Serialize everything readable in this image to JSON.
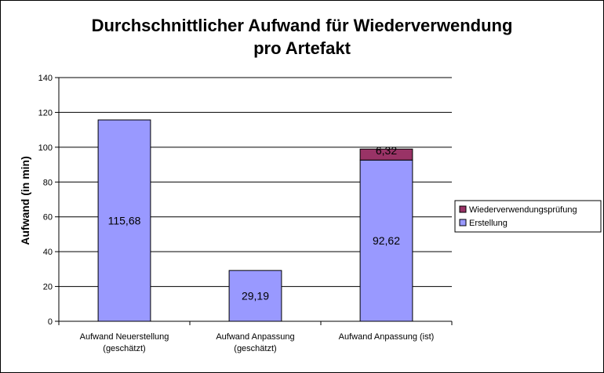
{
  "chart_data": {
    "type": "bar",
    "stacked": true,
    "title_lines": [
      "Durchschnittlicher Aufwand für Wiederverwendung",
      "pro Artefakt"
    ],
    "ylabel": "Aufwand (in min)",
    "xlabel": "",
    "ylim": [
      0,
      140
    ],
    "yticks": [
      0,
      20,
      40,
      60,
      80,
      100,
      120,
      140
    ],
    "grid": true,
    "legend_position": "right",
    "categories": [
      [
        "Aufwand Neuerstellung",
        "(geschätzt)"
      ],
      [
        "Aufwand Anpassung",
        "(geschätzt)"
      ],
      [
        "Aufwand Anpassung (ist)"
      ]
    ],
    "series": [
      {
        "name": "Erstellung",
        "color": "#9999ff",
        "values": [
          115.68,
          29.19,
          92.62
        ],
        "labels": [
          "115,68",
          "29,19",
          "92,62"
        ]
      },
      {
        "name": "Wiederverwendungsprüfung",
        "color": "#993366",
        "values": [
          0,
          0,
          6.32
        ],
        "labels": [
          "",
          "",
          "6,32"
        ]
      }
    ],
    "legend_order": [
      "Wiederverwendungsprüfung",
      "Erstellung"
    ]
  }
}
